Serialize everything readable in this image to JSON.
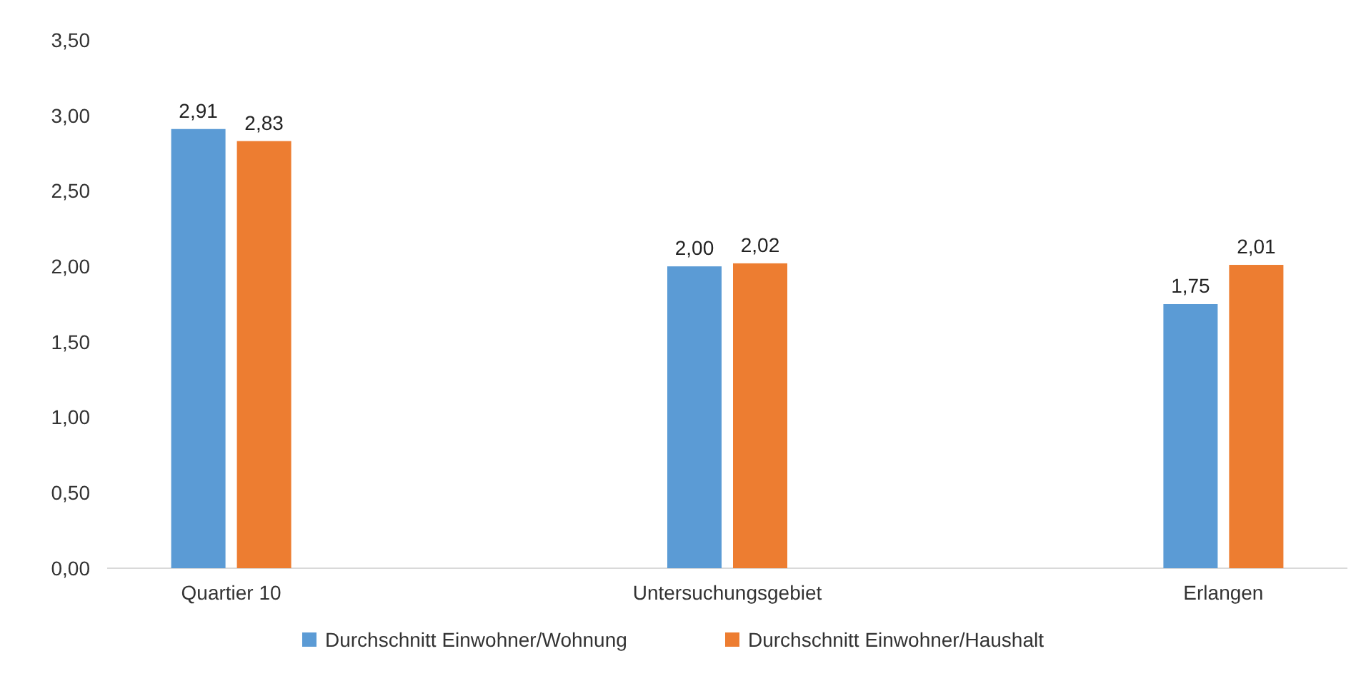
{
  "chart_data": {
    "type": "bar",
    "categories": [
      "Quartier 10",
      "Untersuchungsgebiet",
      "Erlangen"
    ],
    "series": [
      {
        "name": "Durchschnitt Einwohner/Wohnung",
        "color": "#5b9bd5",
        "values": [
          2.91,
          2.0,
          1.75
        ],
        "value_labels": [
          "2,91",
          "2,00",
          "1,75"
        ]
      },
      {
        "name": "Durchschnitt Einwohner/Haushalt",
        "color": "#ed7d31",
        "values": [
          2.83,
          2.02,
          2.01
        ],
        "value_labels": [
          "2,83",
          "2,02",
          "2,01"
        ]
      }
    ],
    "ylim": [
      0,
      3.5
    ],
    "yticks": [
      {
        "value": 0,
        "label": "0,00"
      },
      {
        "value": 0.5,
        "label": "0,50"
      },
      {
        "value": 1,
        "label": "1,00"
      },
      {
        "value": 1.5,
        "label": "1,50"
      },
      {
        "value": 2,
        "label": "2,00"
      },
      {
        "value": 2.5,
        "label": "2,50"
      },
      {
        "value": 3,
        "label": "3,00"
      },
      {
        "value": 3.5,
        "label": "3,50"
      }
    ],
    "grid": false,
    "legend": "bottom"
  }
}
